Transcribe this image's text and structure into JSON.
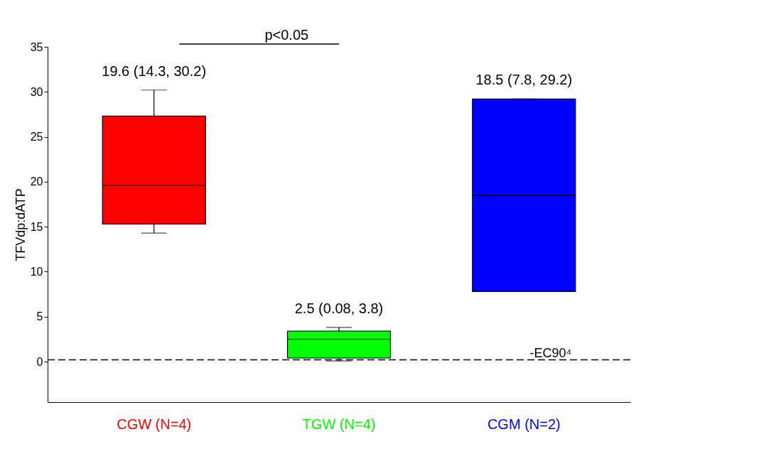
{
  "chart_data": {
    "type": "box",
    "ylabel": "TFVdp:dATP",
    "categories": [
      "CGW (N=4)",
      "TGW (N=4)",
      "CGM (N=2)"
    ],
    "colors": [
      "#ff0000",
      "#00ff00",
      "#0000ff"
    ],
    "boxes": [
      {
        "low": 14.3,
        "q1": 15.3,
        "median": 19.6,
        "q3": 27.3,
        "high": 30.2
      },
      {
        "low": 0.08,
        "q1": 0.4,
        "median": 2.5,
        "q3": 3.4,
        "high": 3.8
      },
      {
        "low": 7.8,
        "q1": 7.8,
        "median": 18.5,
        "q3": 29.2,
        "high": 29.2
      }
    ],
    "ylim": [
      -4.5,
      35
    ],
    "yticks": [
      0,
      5,
      10,
      15,
      20,
      25,
      30,
      35
    ],
    "grid": false,
    "ref_lines": [
      {
        "axis": "y",
        "value": 0.2,
        "label": "-EC90⁴",
        "line_style": "dashed",
        "color": "#000000"
      }
    ],
    "annotations": [
      "19.6 (14.3, 30.2)",
      "2.5 (0.08, 3.8)",
      "18.5 (7.8, 29.2)",
      "p<0.05"
    ]
  }
}
